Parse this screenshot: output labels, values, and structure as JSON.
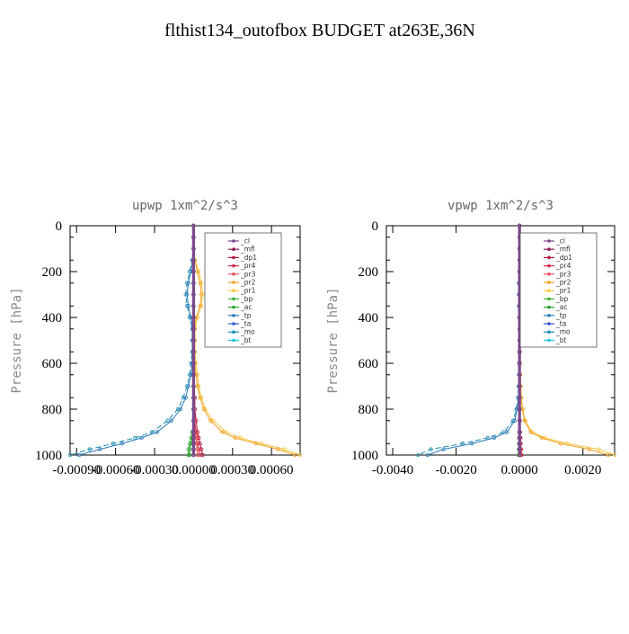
{
  "figure_title": "flthist134_outofbox  BUDGET at263E,36N",
  "colors": {
    "_cl": "#7a4a8c",
    "_mfl": "#8b1a5c",
    "_dp1": "#b5163a",
    "_pr4": "#d4284a",
    "_pr3": "#e8505a",
    "_pr2": "#f0a020",
    "_pr1": "#f5c842",
    "_bp": "#3cb43c",
    "_ac": "#2ea02e",
    "_tp": "#2a7ab8",
    "_ta": "#3355cc",
    "_mo": "#1e8fb0",
    "_bt": "#20c8e0"
  },
  "chart_data": [
    {
      "type": "line",
      "title": "upwp   1xm^2/s^3",
      "ylabel": "Pressure [hPa]",
      "xlim": [
        -0.00095,
        0.00082
      ],
      "ylim": [
        1000,
        0
      ],
      "xticks": [
        -0.0009,
        -0.0006,
        -0.0003,
        0.0,
        0.0003,
        0.0006
      ],
      "xtick_labels": [
        "-0.00090",
        "-0.00060",
        "-0.00030",
        "0.00000",
        "0.00030",
        "0.00060"
      ],
      "yticks": [
        0,
        200,
        400,
        600,
        800,
        1000
      ],
      "ytick_labels": [
        "0",
        "200",
        "400",
        "600",
        "800",
        "1000"
      ],
      "legend": [
        "_cl",
        "_mfl",
        "_dp1",
        "_pr4",
        "_pr3",
        "_pr2",
        "_pr1",
        "_bp",
        "_ac",
        "_tp",
        "_ta",
        "_mo",
        "_bt"
      ],
      "legend_position": "top-right",
      "pressure": [
        0,
        50,
        100,
        150,
        200,
        250,
        300,
        350,
        400,
        450,
        500,
        550,
        600,
        650,
        700,
        750,
        800,
        850,
        900,
        925,
        950,
        975,
        1000
      ],
      "series": [
        {
          "name": "_pr1",
          "x": [
            0,
            0,
            0,
            1e-05,
            4e-05,
            6e-05,
            7e-05,
            6e-05,
            3e-05,
            1e-05,
            1e-05,
            1e-05,
            2e-05,
            3e-05,
            4e-05,
            6e-05,
            9e-05,
            0.00015,
            0.00025,
            0.00036,
            0.00052,
            0.0007,
            0.00082
          ]
        },
        {
          "name": "_pr2",
          "x": [
            0,
            0,
            0,
            1e-05,
            3e-05,
            5e-05,
            6e-05,
            5e-05,
            2e-05,
            1e-05,
            1e-05,
            1e-05,
            1e-05,
            2e-05,
            3e-05,
            5e-05,
            8e-05,
            0.00013,
            0.00022,
            0.00032,
            0.00048,
            0.00065,
            0.00078
          ]
        },
        {
          "name": "_mo",
          "x": [
            0,
            0,
            0,
            -1e-05,
            -3e-05,
            -5e-05,
            -6e-05,
            -5e-05,
            -3e-05,
            -1e-05,
            -1e-05,
            -1e-05,
            -2e-05,
            -3e-05,
            -5e-05,
            -8e-05,
            -0.00012,
            -0.0002,
            -0.00032,
            -0.00045,
            -0.00062,
            -0.0008,
            -0.00095
          ]
        },
        {
          "name": "_tp",
          "x": [
            0,
            0,
            0,
            -1e-05,
            -2e-05,
            -4e-05,
            -5e-05,
            -4e-05,
            -2e-05,
            -1e-05,
            -1e-05,
            -1e-05,
            -1e-05,
            -2e-05,
            -4e-05,
            -6e-05,
            -0.0001,
            -0.00017,
            -0.00028,
            -0.0004,
            -0.00055,
            -0.00072,
            -0.00088
          ]
        },
        {
          "name": "_dp1",
          "x": [
            0,
            0,
            0,
            0,
            0,
            0,
            0,
            0,
            0,
            0,
            0,
            0,
            0,
            0,
            0,
            1e-05,
            1e-05,
            2e-05,
            3e-05,
            4e-05,
            5e-05,
            6e-05,
            7e-05
          ]
        },
        {
          "name": "_pr4",
          "x": [
            0,
            0,
            0,
            0,
            0,
            0,
            0,
            0,
            0,
            0,
            0,
            0,
            0,
            0,
            0,
            0,
            1e-05,
            1e-05,
            2e-05,
            3e-05,
            3e-05,
            4e-05,
            5e-05
          ]
        },
        {
          "name": "_pr3",
          "x": [
            0,
            0,
            0,
            0,
            0,
            0,
            0,
            0,
            0,
            0,
            0,
            0,
            0,
            0,
            0,
            0,
            0,
            1e-05,
            1e-05,
            2e-05,
            2e-05,
            3e-05,
            3e-05
          ]
        },
        {
          "name": "_bp",
          "x": [
            0,
            0,
            0,
            0,
            0,
            0,
            0,
            0,
            0,
            0,
            0,
            0,
            0,
            0,
            0,
            0,
            0,
            0,
            -1e-05,
            -2e-05,
            -3e-05,
            -4e-05,
            -4e-05
          ]
        },
        {
          "name": "_ac",
          "x": [
            0,
            0,
            0,
            0,
            0,
            0,
            0,
            0,
            0,
            0,
            0,
            0,
            0,
            0,
            0,
            0,
            0,
            0,
            -1e-05,
            -1e-05,
            -2e-05,
            -3e-05,
            -3e-05
          ]
        },
        {
          "name": "_ta",
          "x": [
            0,
            0,
            0,
            0,
            0,
            0,
            0,
            0,
            0,
            0,
            0,
            0,
            0,
            0,
            0,
            0,
            0,
            0,
            0,
            0,
            0,
            0,
            0
          ]
        },
        {
          "name": "_bt",
          "x": [
            0,
            0,
            0,
            0,
            0,
            0,
            0,
            0,
            0,
            0,
            0,
            0,
            0,
            0,
            0,
            0,
            0,
            0,
            0,
            0,
            0,
            0,
            0
          ]
        },
        {
          "name": "_mfl",
          "x": [
            0,
            0,
            0,
            0,
            0,
            0,
            0,
            0,
            0,
            0,
            0,
            0,
            0,
            0,
            0,
            0,
            0,
            0,
            0,
            0,
            0,
            0,
            0
          ]
        },
        {
          "name": "_cl",
          "x": [
            0,
            0,
            0,
            0,
            0,
            0,
            0,
            0,
            0,
            0,
            0,
            0,
            0,
            0,
            0,
            0,
            0,
            0,
            0,
            0,
            0,
            0,
            0
          ]
        }
      ]
    },
    {
      "type": "line",
      "title": "vpwp   1xm^2/s^3",
      "ylabel": "Pressure [hPa]",
      "xlim": [
        -0.0042,
        0.003
      ],
      "ylim": [
        1000,
        0
      ],
      "xticks": [
        -0.004,
        -0.002,
        0.0,
        0.002
      ],
      "xtick_labels": [
        "-0.0040",
        "-0.0020",
        "0.0000",
        "0.0020"
      ],
      "yticks": [
        0,
        200,
        400,
        600,
        800,
        1000
      ],
      "ytick_labels": [
        "0",
        "200",
        "400",
        "600",
        "800",
        "1000"
      ],
      "legend": [
        "_cl",
        "_mfl",
        "_dp1",
        "_pr4",
        "_pr3",
        "_pr2",
        "_pr1",
        "_bp",
        "_ac",
        "_tp",
        "_ta",
        "_mo",
        "_bt"
      ],
      "legend_position": "top-right",
      "pressure": [
        0,
        50,
        100,
        150,
        200,
        250,
        300,
        350,
        400,
        450,
        500,
        550,
        600,
        650,
        700,
        750,
        800,
        850,
        900,
        925,
        950,
        975,
        1000
      ],
      "series": [
        {
          "name": "_pr1",
          "x": [
            0,
            0,
            0,
            1e-05,
            2e-05,
            3e-05,
            3e-05,
            2e-05,
            1e-05,
            1e-05,
            1e-05,
            1e-05,
            2e-05,
            3e-05,
            4e-05,
            6e-05,
            0.0001,
            0.00018,
            0.0004,
            0.0008,
            0.0015,
            0.0025,
            0.003
          ]
        },
        {
          "name": "_pr2",
          "x": [
            0,
            0,
            0,
            0,
            1e-05,
            2e-05,
            2e-05,
            2e-05,
            1e-05,
            0,
            0,
            1e-05,
            1e-05,
            2e-05,
            3e-05,
            5e-05,
            9e-05,
            0.00016,
            0.00035,
            0.0007,
            0.0013,
            0.0022,
            0.0028
          ]
        },
        {
          "name": "_mo",
          "x": [
            0,
            0,
            0,
            0,
            -1e-05,
            -2e-05,
            -2e-05,
            -2e-05,
            -1e-05,
            0,
            0,
            -1e-05,
            -1e-05,
            -2e-05,
            -3e-05,
            -5e-05,
            -0.0001,
            -0.0002,
            -0.0005,
            -0.001,
            -0.0018,
            -0.0028,
            -0.0032
          ]
        },
        {
          "name": "_tp",
          "x": [
            0,
            0,
            0,
            0,
            0,
            -1e-05,
            -1e-05,
            -1e-05,
            0,
            0,
            0,
            0,
            -1e-05,
            -1e-05,
            -2e-05,
            -4e-05,
            -8e-05,
            -0.00015,
            -0.0004,
            -0.0008,
            -0.0015,
            -0.0024,
            -0.0029
          ]
        },
        {
          "name": "_dp1",
          "x": [
            0,
            0,
            0,
            0,
            0,
            0,
            0,
            0,
            0,
            0,
            0,
            0,
            0,
            0,
            0,
            0,
            0,
            1e-05,
            2e-05,
            3e-05,
            4e-05,
            5e-05,
            6e-05
          ]
        },
        {
          "name": "_pr4",
          "x": [
            0,
            0,
            0,
            0,
            0,
            0,
            0,
            0,
            0,
            0,
            0,
            0,
            0,
            0,
            0,
            0,
            0,
            0,
            1e-05,
            2e-05,
            3e-05,
            4e-05,
            4e-05
          ]
        },
        {
          "name": "_pr3",
          "x": [
            0,
            0,
            0,
            0,
            0,
            0,
            0,
            0,
            0,
            0,
            0,
            0,
            0,
            0,
            0,
            0,
            0,
            0,
            1e-05,
            1e-05,
            2e-05,
            2e-05,
            3e-05
          ]
        },
        {
          "name": "_bp",
          "x": [
            0,
            0,
            0,
            0,
            0,
            0,
            0,
            0,
            0,
            0,
            0,
            0,
            0,
            0,
            0,
            0,
            0,
            0,
            -1e-05,
            -1e-05,
            -2e-05,
            -2e-05,
            -3e-05
          ]
        },
        {
          "name": "_ac",
          "x": [
            0,
            0,
            0,
            0,
            0,
            0,
            0,
            0,
            0,
            0,
            0,
            0,
            0,
            0,
            0,
            0,
            0,
            0,
            0,
            -1e-05,
            -1e-05,
            -2e-05,
            -2e-05
          ]
        },
        {
          "name": "_ta",
          "x": [
            0,
            0,
            0,
            0,
            0,
            0,
            0,
            0,
            0,
            0,
            0,
            0,
            0,
            0,
            0,
            0,
            0,
            0,
            0,
            0,
            0,
            0,
            0
          ]
        },
        {
          "name": "_bt",
          "x": [
            0,
            0,
            0,
            0,
            0,
            0,
            0,
            0,
            0,
            0,
            0,
            0,
            0,
            0,
            0,
            0,
            0,
            0,
            0,
            0,
            0,
            0,
            0
          ]
        },
        {
          "name": "_mfl",
          "x": [
            0,
            0,
            0,
            0,
            0,
            0,
            0,
            0,
            0,
            0,
            0,
            0,
            0,
            0,
            0,
            0,
            0,
            0,
            0,
            0,
            0,
            0,
            0
          ]
        },
        {
          "name": "_cl",
          "x": [
            0,
            0,
            0,
            0,
            0,
            0,
            0,
            0,
            0,
            0,
            0,
            0,
            0,
            0,
            0,
            0,
            0,
            0,
            0,
            0,
            0,
            0,
            0
          ]
        }
      ]
    }
  ]
}
